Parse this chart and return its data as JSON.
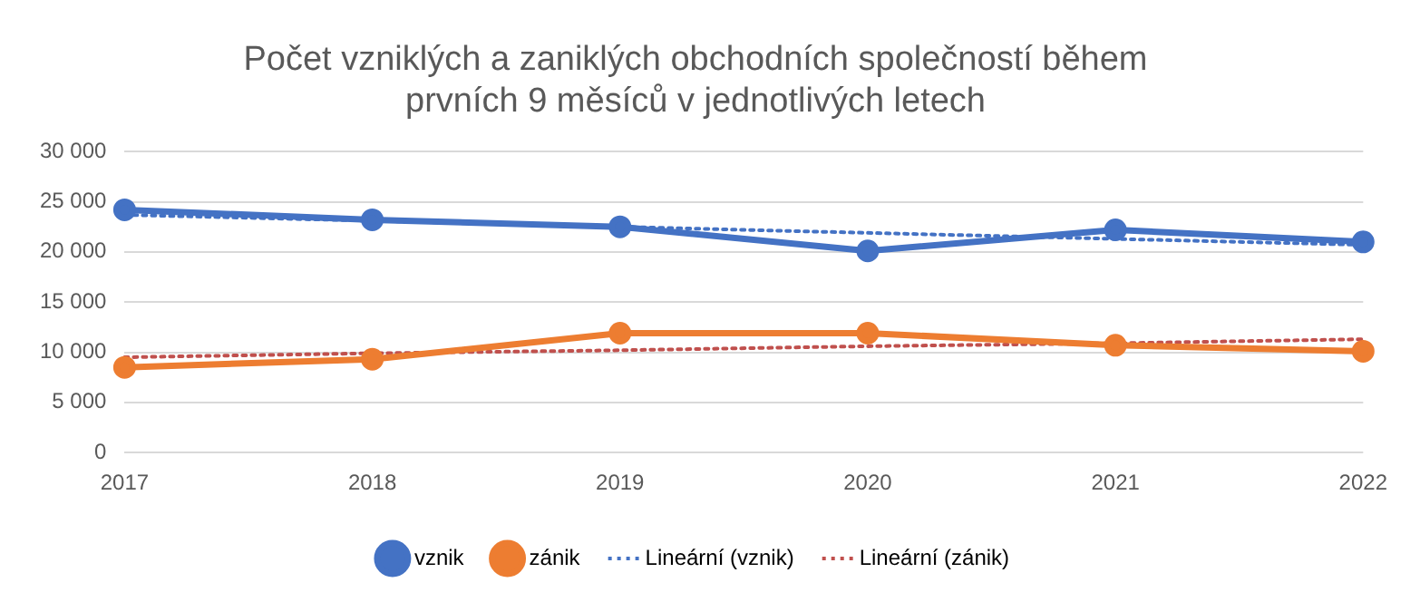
{
  "chart_data": {
    "type": "line",
    "title": "Počet vzniklých a zaniklých obchodních společností během prvních 9 měsíců v jednotlivých letech",
    "categories": [
      "2017",
      "2018",
      "2019",
      "2020",
      "2021",
      "2022"
    ],
    "series": [
      {
        "name": "vznik",
        "color": "#4472c4",
        "values": [
          24200,
          23200,
          22500,
          20100,
          22200,
          21000
        ],
        "marker": "circle",
        "line_style": "solid"
      },
      {
        "name": "zánik",
        "color": "#ed7d31",
        "values": [
          8500,
          9300,
          11900,
          11900,
          10700,
          10100
        ],
        "marker": "circle",
        "line_style": "solid"
      },
      {
        "name": "Lineární (vznik)",
        "color": "#4472c4",
        "values": [
          23700,
          23100,
          22500,
          21900,
          21300,
          20700
        ],
        "marker": "none",
        "line_style": "dotted"
      },
      {
        "name": "Lineární (zánik)",
        "color": "#c0504d",
        "values": [
          9500,
          9900,
          10200,
          10600,
          10900,
          11300
        ],
        "marker": "none",
        "line_style": "dotted"
      }
    ],
    "ylim": [
      0,
      30000
    ],
    "yticks": [
      0,
      {
        "value": 5000,
        "label": "5 000"
      },
      {
        "value": 10000,
        "label": "10 000"
      },
      {
        "value": 15000,
        "label": "15 000"
      },
      {
        "value": 20000,
        "label": "20 000"
      },
      {
        "value": 25000,
        "label": "25 000"
      },
      {
        "value": 30000,
        "label": "30 000"
      }
    ],
    "grid": "y",
    "legend": "bottom"
  }
}
